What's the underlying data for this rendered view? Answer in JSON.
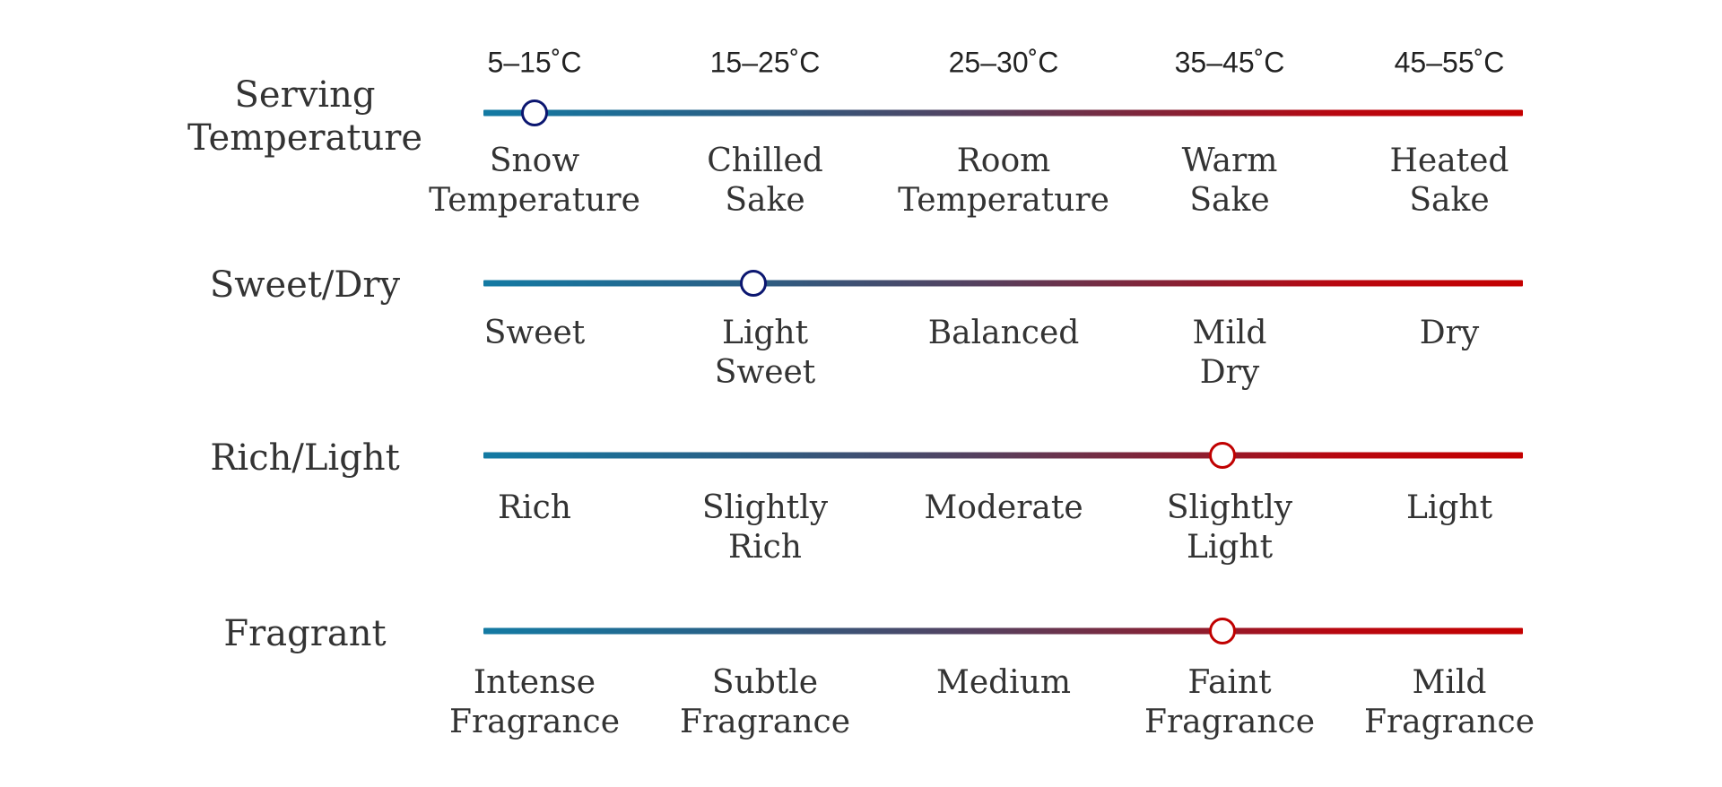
{
  "rows": [
    {
      "title": "Serving Temperature",
      "title_lines": [
        "Serving",
        "Temperature"
      ],
      "value_index": 0,
      "knob_color": "#0b1670",
      "ranges": [
        "5–15˚C",
        "15–25˚C",
        "25–30˚C",
        "35–45˚C",
        "45–55˚C"
      ],
      "labels": [
        [
          "Snow",
          "Temperature"
        ],
        [
          "Chilled",
          "Sake"
        ],
        [
          "Room",
          "Temperature"
        ],
        [
          "Warm",
          "Sake"
        ],
        [
          "Heated",
          "Sake"
        ]
      ]
    },
    {
      "title": "Sweet/Dry",
      "title_lines": [
        "Sweet/Dry"
      ],
      "value_index": 1,
      "knob_color": "#0b1670",
      "labels": [
        [
          "Sweet"
        ],
        [
          "Light",
          "Sweet"
        ],
        [
          "Balanced"
        ],
        [
          "Mild",
          "Dry"
        ],
        [
          "Dry"
        ]
      ]
    },
    {
      "title": "Rich/Light",
      "title_lines": [
        "Rich/Light"
      ],
      "value_index": 3,
      "knob_color": "#c00000",
      "labels": [
        [
          "Rich"
        ],
        [
          "Slightly",
          "Rich"
        ],
        [
          "Moderate"
        ],
        [
          "Slightly",
          "Light"
        ],
        [
          "Light"
        ]
      ]
    },
    {
      "title": "Fragrant",
      "title_lines": [
        "Fragrant"
      ],
      "value_index": 3,
      "knob_color": "#c00000",
      "labels": [
        [
          "Intense",
          "Fragrance"
        ],
        [
          "Subtle",
          "Fragrance"
        ],
        [
          "Medium"
        ],
        [
          "Faint",
          "Fragrance"
        ],
        [
          "Mild",
          "Fragrance"
        ]
      ]
    }
  ],
  "colors": {
    "scale_start": "#137aa3",
    "scale_end": "#c40000"
  }
}
